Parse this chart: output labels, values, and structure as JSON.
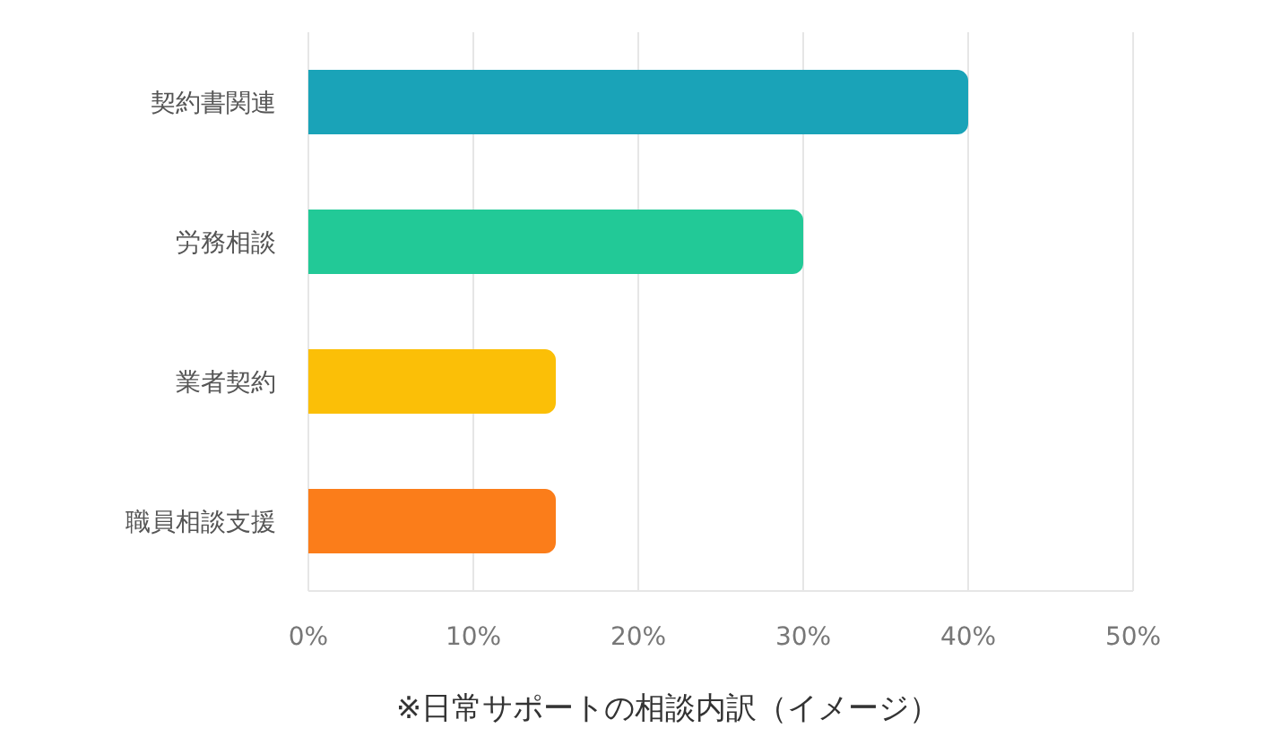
{
  "chart_data": {
    "type": "bar",
    "orientation": "horizontal",
    "categories": [
      "契約書関連",
      "労務相談",
      "業者契約",
      "職員相談支援"
    ],
    "values": [
      40,
      30,
      15,
      15
    ],
    "colors": [
      "#1aa3b8",
      "#22c997",
      "#fbbf07",
      "#fb7d1a"
    ],
    "xlim": [
      0,
      50
    ],
    "xticks": [
      {
        "value": 0,
        "label": "0%"
      },
      {
        "value": 10,
        "label": "10%"
      },
      {
        "value": 20,
        "label": "20%"
      },
      {
        "value": 30,
        "label": "30%"
      },
      {
        "value": 40,
        "label": "40%"
      },
      {
        "value": 50,
        "label": "50%"
      }
    ],
    "grid": "x",
    "annotations": [
      "※日常サポートの相談内訳（イメージ）"
    ]
  }
}
